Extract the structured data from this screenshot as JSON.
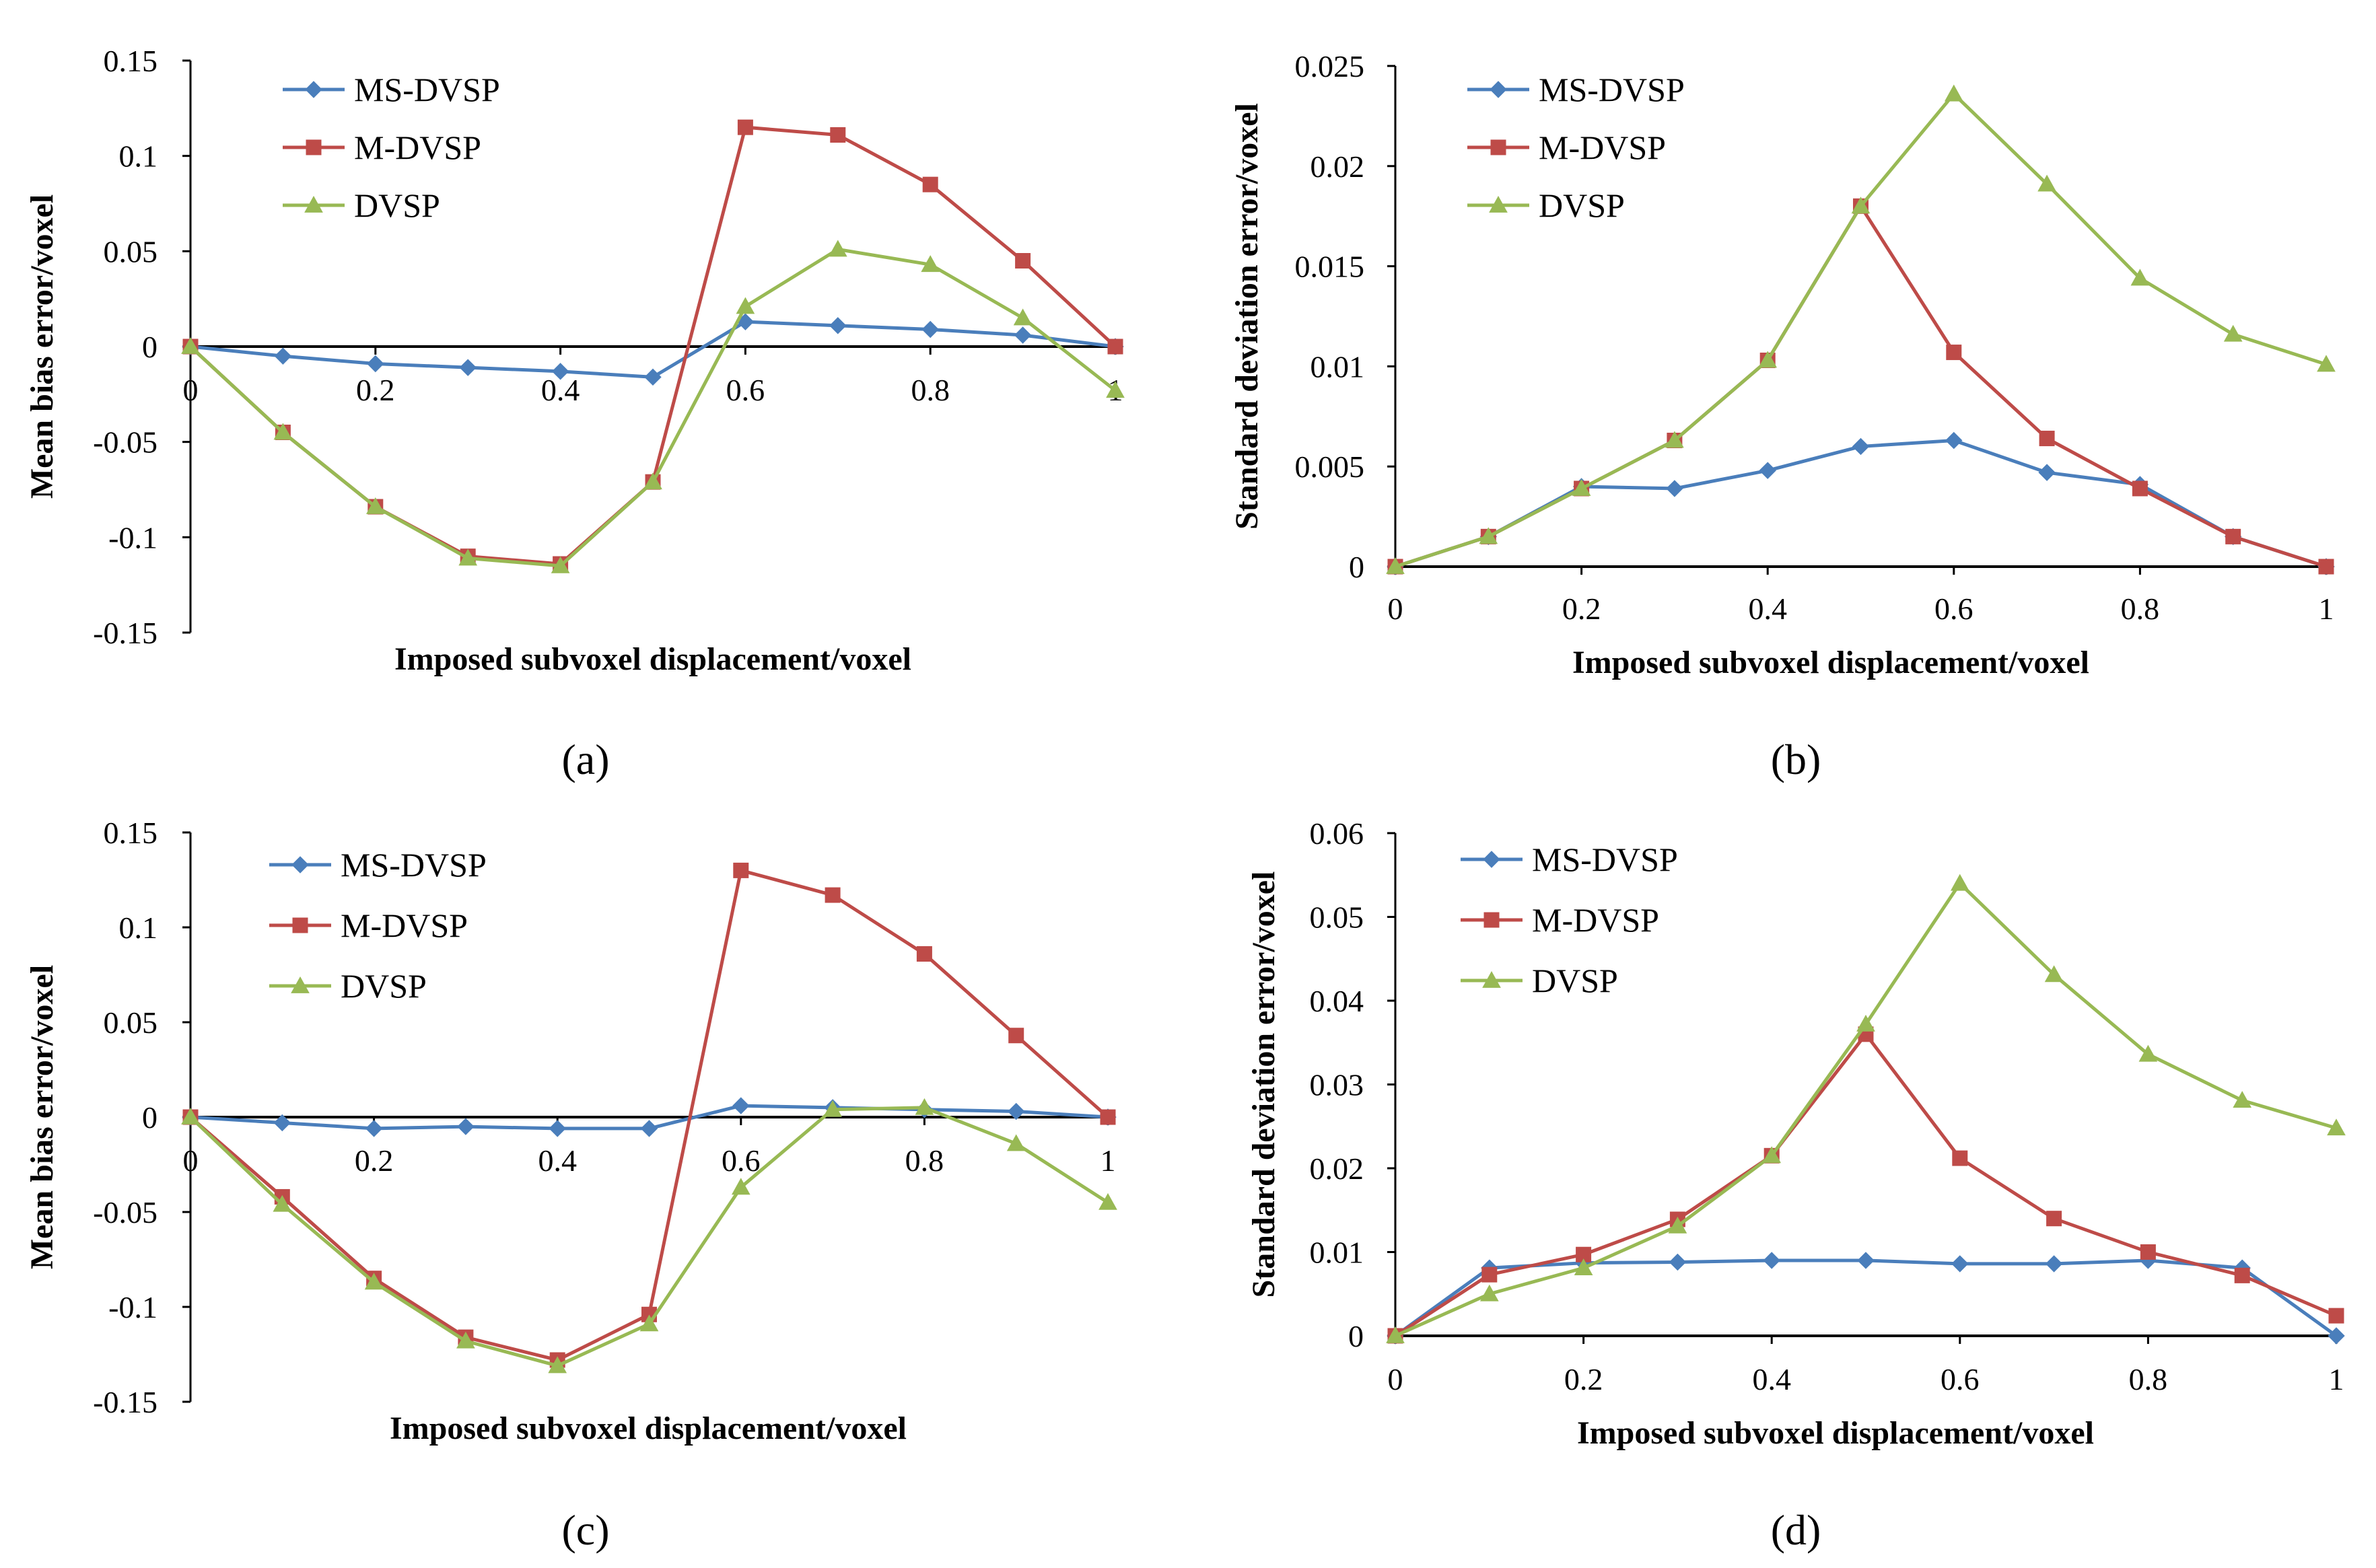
{
  "chart_data": [
    {
      "type": "line",
      "panel_label": "(a)",
      "x": [
        0,
        0.1,
        0.2,
        0.3,
        0.4,
        0.5,
        0.6,
        0.7,
        0.8,
        0.9,
        1
      ],
      "xlabel": "Imposed subvoxel displacement/voxel",
      "ylabel": "Mean bias error/voxel",
      "xlim": [
        0,
        1
      ],
      "ylim": [
        -0.15,
        0.15
      ],
      "x_ticks": [
        {
          "v": 0,
          "label": "0"
        },
        {
          "v": 0.2,
          "label": "0.2"
        },
        {
          "v": 0.4,
          "label": "0.4"
        },
        {
          "v": 0.6,
          "label": "0.6"
        },
        {
          "v": 0.8,
          "label": "0.8"
        },
        {
          "v": 1,
          "label": "1"
        }
      ],
      "y_ticks": [
        {
          "v": -0.15,
          "label": "-0.15"
        },
        {
          "v": -0.1,
          "label": "-0.1"
        },
        {
          "v": -0.05,
          "label": "-0.05"
        },
        {
          "v": 0,
          "label": "0"
        },
        {
          "v": 0.05,
          "label": "0.05"
        },
        {
          "v": 0.1,
          "label": "0.1"
        },
        {
          "v": 0.15,
          "label": "0.15"
        }
      ],
      "x_axis_at_zero": true,
      "grid": false,
      "legend_position": "top-left",
      "series": [
        {
          "name": "MS-DVSP",
          "color": "#4a7ebb",
          "marker": "diamond",
          "values": [
            0,
            -0.005,
            -0.009,
            -0.011,
            -0.013,
            -0.016,
            0.013,
            0.011,
            0.009,
            0.006,
            0
          ]
        },
        {
          "name": "M-DVSP",
          "color": "#be4b48",
          "marker": "square",
          "values": [
            0,
            -0.045,
            -0.084,
            -0.11,
            -0.114,
            -0.071,
            0.115,
            0.111,
            0.085,
            0.045,
            0
          ]
        },
        {
          "name": "DVSP",
          "color": "#98b954",
          "marker": "triangle",
          "values": [
            0,
            -0.045,
            -0.084,
            -0.111,
            -0.115,
            -0.071,
            0.021,
            0.051,
            0.043,
            0.015,
            -0.023
          ]
        }
      ]
    },
    {
      "type": "line",
      "panel_label": "(b)",
      "x": [
        0,
        0.1,
        0.2,
        0.3,
        0.4,
        0.5,
        0.6,
        0.7,
        0.8,
        0.9,
        1
      ],
      "xlabel": "Imposed subvoxel displacement/voxel",
      "ylabel": "Standard  deviation error/voxel",
      "xlim": [
        0,
        1
      ],
      "ylim": [
        0,
        0.025
      ],
      "x_ticks": [
        {
          "v": 0,
          "label": "0"
        },
        {
          "v": 0.2,
          "label": "0.2"
        },
        {
          "v": 0.4,
          "label": "0.4"
        },
        {
          "v": 0.6,
          "label": "0.6"
        },
        {
          "v": 0.8,
          "label": "0.8"
        },
        {
          "v": 1,
          "label": "1"
        }
      ],
      "y_ticks": [
        {
          "v": 0,
          "label": "0"
        },
        {
          "v": 0.005,
          "label": "0.005"
        },
        {
          "v": 0.01,
          "label": "0.01"
        },
        {
          "v": 0.015,
          "label": "0.015"
        },
        {
          "v": 0.02,
          "label": "0.02"
        },
        {
          "v": 0.025,
          "label": "0.025"
        }
      ],
      "x_axis_at_zero": false,
      "grid": false,
      "legend_position": "top-left",
      "series": [
        {
          "name": "MS-DVSP",
          "color": "#4a7ebb",
          "marker": "diamond",
          "values": [
            0,
            0.0015,
            0.004,
            0.0039,
            0.0048,
            0.006,
            0.0063,
            0.0047,
            0.0041,
            0.0015,
            0
          ]
        },
        {
          "name": "M-DVSP",
          "color": "#be4b48",
          "marker": "square",
          "values": [
            0,
            0.0015,
            0.0039,
            0.0063,
            0.0103,
            0.018,
            0.0107,
            0.0064,
            0.0039,
            0.0015,
            0
          ]
        },
        {
          "name": "DVSP",
          "color": "#98b954",
          "marker": "triangle",
          "values": [
            0,
            0.0015,
            0.0039,
            0.0063,
            0.0103,
            0.018,
            0.0236,
            0.0191,
            0.0144,
            0.0116,
            0.0101
          ]
        }
      ]
    },
    {
      "type": "line",
      "panel_label": "(c)",
      "x": [
        0,
        0.1,
        0.2,
        0.3,
        0.4,
        0.5,
        0.6,
        0.7,
        0.8,
        0.9,
        1
      ],
      "xlabel": "Imposed subvoxel displacement/voxel",
      "ylabel": "Mean bias error/voxel",
      "xlim": [
        0,
        1
      ],
      "ylim": [
        -0.15,
        0.15
      ],
      "x_ticks": [
        {
          "v": 0,
          "label": "0"
        },
        {
          "v": 0.2,
          "label": "0.2"
        },
        {
          "v": 0.4,
          "label": "0.4"
        },
        {
          "v": 0.6,
          "label": "0.6"
        },
        {
          "v": 0.8,
          "label": "0.8"
        },
        {
          "v": 1,
          "label": "1"
        }
      ],
      "y_ticks": [
        {
          "v": -0.15,
          "label": "-0.15"
        },
        {
          "v": -0.1,
          "label": "-0.1"
        },
        {
          "v": -0.05,
          "label": "-0.05"
        },
        {
          "v": 0,
          "label": "0"
        },
        {
          "v": 0.05,
          "label": "0.05"
        },
        {
          "v": 0.1,
          "label": "0.1"
        },
        {
          "v": 0.15,
          "label": "0.15"
        }
      ],
      "x_axis_at_zero": true,
      "grid": false,
      "legend_position": "top-left",
      "series": [
        {
          "name": "MS-DVSP",
          "color": "#4a7ebb",
          "marker": "diamond",
          "values": [
            0,
            -0.003,
            -0.006,
            -0.005,
            -0.006,
            -0.006,
            0.006,
            0.005,
            0.004,
            0.003,
            0
          ]
        },
        {
          "name": "M-DVSP",
          "color": "#be4b48",
          "marker": "square",
          "values": [
            0,
            -0.042,
            -0.085,
            -0.116,
            -0.128,
            -0.104,
            0.13,
            0.117,
            0.086,
            0.043,
            0
          ]
        },
        {
          "name": "DVSP",
          "color": "#98b954",
          "marker": "triangle",
          "values": [
            0,
            -0.046,
            -0.087,
            -0.118,
            -0.131,
            -0.109,
            -0.037,
            0.004,
            0.005,
            -0.014,
            -0.045
          ]
        }
      ]
    },
    {
      "type": "line",
      "panel_label": "(d)",
      "x": [
        0,
        0.1,
        0.2,
        0.3,
        0.4,
        0.5,
        0.6,
        0.7,
        0.8,
        0.9,
        1
      ],
      "xlabel": "Imposed subvoxel displacement/voxel",
      "ylabel": "Standard deviation error/voxel",
      "xlim": [
        0,
        1
      ],
      "ylim": [
        0,
        0.06
      ],
      "x_ticks": [
        {
          "v": 0,
          "label": "0"
        },
        {
          "v": 0.2,
          "label": "0.2"
        },
        {
          "v": 0.4,
          "label": "0.4"
        },
        {
          "v": 0.6,
          "label": "0.6"
        },
        {
          "v": 0.8,
          "label": "0.8"
        },
        {
          "v": 1,
          "label": "1"
        }
      ],
      "y_ticks": [
        {
          "v": 0,
          "label": "0"
        },
        {
          "v": 0.01,
          "label": "0.01"
        },
        {
          "v": 0.02,
          "label": "0.02"
        },
        {
          "v": 0.03,
          "label": "0.03"
        },
        {
          "v": 0.04,
          "label": "0.04"
        },
        {
          "v": 0.05,
          "label": "0.05"
        },
        {
          "v": 0.06,
          "label": "0.06"
        }
      ],
      "x_axis_at_zero": false,
      "grid": false,
      "legend_position": "top-left",
      "series": [
        {
          "name": "MS-DVSP",
          "color": "#4a7ebb",
          "marker": "diamond",
          "values": [
            0,
            0.0081,
            0.0087,
            0.0088,
            0.009,
            0.009,
            0.0086,
            0.0086,
            0.009,
            0.0081,
            0
          ]
        },
        {
          "name": "M-DVSP",
          "color": "#be4b48",
          "marker": "square",
          "values": [
            0,
            0.0073,
            0.0097,
            0.0139,
            0.0215,
            0.036,
            0.0212,
            0.014,
            0.01,
            0.0072,
            0.0024
          ]
        },
        {
          "name": "DVSP",
          "color": "#98b954",
          "marker": "triangle",
          "values": [
            0,
            0.005,
            0.0081,
            0.0131,
            0.0215,
            0.0372,
            0.054,
            0.0431,
            0.0336,
            0.0281,
            0.0248
          ]
        }
      ]
    }
  ]
}
